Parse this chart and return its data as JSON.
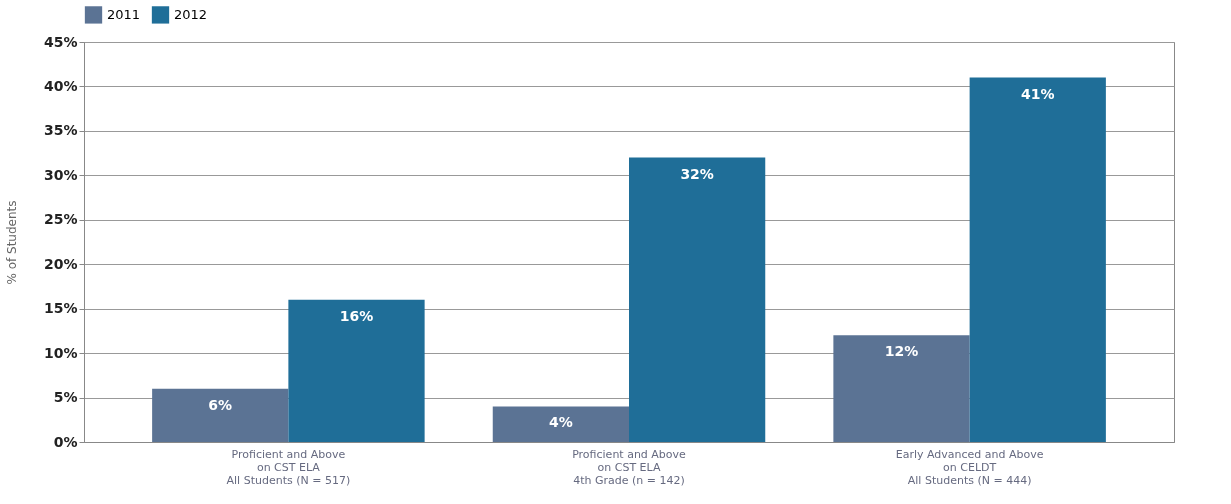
{
  "chart_data": {
    "type": "bar",
    "ylabel": "% of Students",
    "categories": [
      "Proficient and Above\non CST ELA\nAll Students (N = 517)",
      "Proficient and Above\non CST ELA\n4th Grade (n = 142)",
      "Early Advanced and Above\non CELDT\nAll Students (N = 444)"
    ],
    "series": [
      {
        "name": "2011",
        "color": "#5b7394",
        "values": [
          6,
          4,
          12
        ],
        "value_labels": [
          "6%",
          "4%",
          "12%"
        ]
      },
      {
        "name": "2012",
        "color": "#1f6e98",
        "values": [
          16,
          32,
          41
        ],
        "value_labels": [
          "16%",
          "32%",
          "41%"
        ]
      }
    ],
    "ylim": [
      0,
      45
    ],
    "yticks": [
      {
        "value": 0,
        "label": "0%"
      },
      {
        "value": 5,
        "label": "5%"
      },
      {
        "value": 10,
        "label": "10%"
      },
      {
        "value": 15,
        "label": "15%"
      },
      {
        "value": 20,
        "label": "20%"
      },
      {
        "value": 25,
        "label": "25%"
      },
      {
        "value": 30,
        "label": "30%"
      },
      {
        "value": 35,
        "label": "35%"
      },
      {
        "value": 40,
        "label": "40%"
      },
      {
        "value": 45,
        "label": "45%"
      }
    ],
    "grid": "y",
    "legend": "top"
  }
}
